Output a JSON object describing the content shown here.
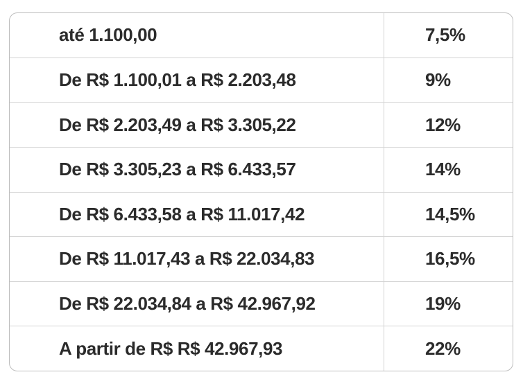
{
  "table": {
    "rows": [
      {
        "range": "até 1.100,00",
        "rate": "7,5%"
      },
      {
        "range": "De R$ 1.100,01 a R$ 2.203,48",
        "rate": "9%"
      },
      {
        "range": "De R$ 2.203,49 a R$ 3.305,22",
        "rate": "12%"
      },
      {
        "range": "De R$ 3.305,23 a R$ 6.433,57",
        "rate": "14%"
      },
      {
        "range": "De R$ 6.433,58 a R$ 11.017,42",
        "rate": "14,5%"
      },
      {
        "range": "De R$ 11.017,43 a R$ 22.034,83",
        "rate": "16,5%"
      },
      {
        "range": "De R$ 22.034,84 a R$ 42.967,92",
        "rate": "19%"
      },
      {
        "range": "A partir de R$ R$ 42.967,93",
        "rate": "22%"
      }
    ]
  },
  "colors": {
    "text": "#2b2b2b",
    "border_outer": "#bdbdbd",
    "border_inner": "#d3d3d3",
    "background": "#ffffff"
  },
  "chart_data": {
    "type": "table",
    "rows": [
      [
        "até 1.100,00",
        "7,5%"
      ],
      [
        "De R$ 1.100,01 a R$ 2.203,48",
        "9%"
      ],
      [
        "De R$ 2.203,49 a R$ 3.305,22",
        "12%"
      ],
      [
        "De R$ 3.305,23 a R$ 6.433,57",
        "14%"
      ],
      [
        "De R$ 6.433,58 a R$ 11.017,42",
        "14,5%"
      ],
      [
        "De R$ 11.017,43 a R$ 22.034,83",
        "16,5%"
      ],
      [
        "De R$ 22.034,84 a R$ 42.967,92",
        "19%"
      ],
      [
        "A partir de R$ R$ 42.967,93",
        "22%"
      ]
    ],
    "rates_percent": [
      7.5,
      9,
      12,
      14,
      14.5,
      16.5,
      19,
      22
    ],
    "layout": "two-column bordered table, rounded corners, no header row"
  }
}
